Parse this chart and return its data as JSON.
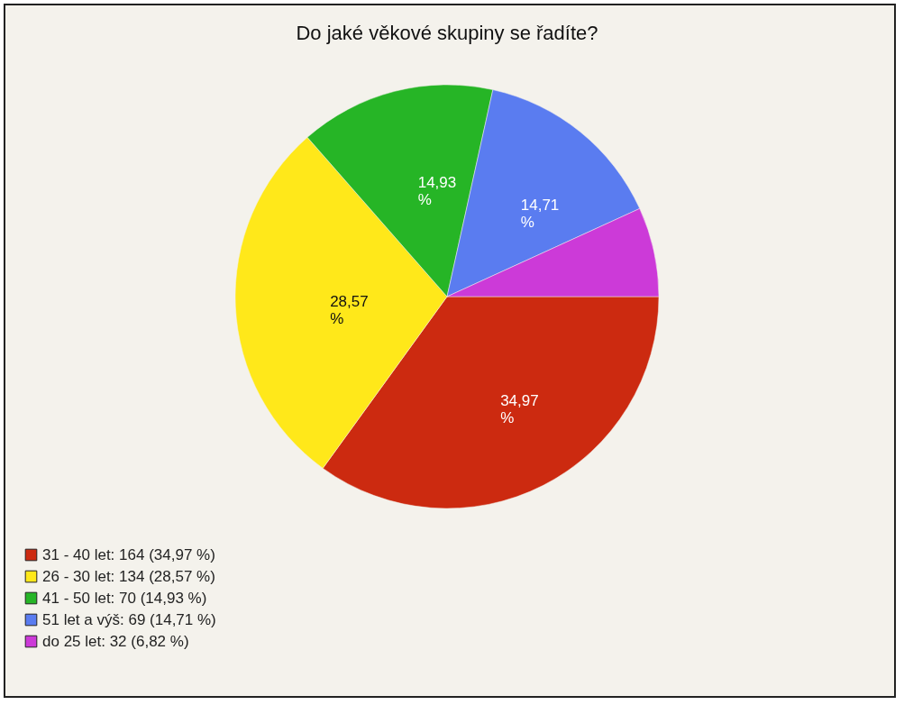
{
  "chart_data": {
    "type": "pie",
    "title": "Do jaké věkové skupiny se řadíte?",
    "categories": [
      "31 - 40 let: 164 (34,97 %)",
      "26 - 30 let: 134 (28,57 %)",
      "41 - 50 let: 70 (14,93 %)",
      "51 let a výš: 69 (14,71 %)",
      "do 25 let: 32 (6,82 %)"
    ],
    "values": [
      34.97,
      28.57,
      14.93,
      14.71,
      6.82
    ],
    "colors": [
      "#cc2a10",
      "#ffe81a",
      "#26b526",
      "#5a7cf0",
      "#cc3ad8"
    ],
    "value_labels": [
      "34,97 %",
      "28,57 %",
      "14,93 %",
      "14,71 %",
      null
    ],
    "legend": "bottom left"
  }
}
